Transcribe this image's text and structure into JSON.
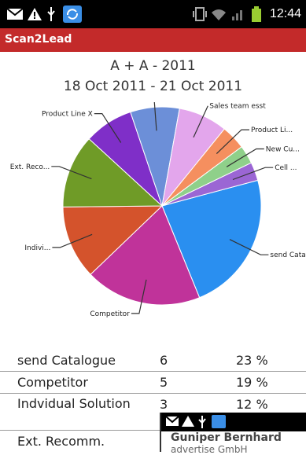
{
  "status_bar": {
    "time": "12:44",
    "icons": [
      "mail-icon",
      "warning-icon",
      "usb-icon",
      "sync-icon",
      "vibrate-icon",
      "wifi-icon",
      "signal-icon",
      "battery-icon"
    ]
  },
  "app": {
    "title": "Scan2Lead"
  },
  "chart": {
    "title": "A + A - 2011",
    "subtitle": "18 Oct 2011 - 21 Oct 2011"
  },
  "chart_data": {
    "type": "pie",
    "title": "A + A - 2011",
    "subtitle": "18 Oct 2011 - 21 Oct 2011",
    "slices": [
      {
        "label": "send Catalo...",
        "value": 23,
        "color": "#2a8ff0"
      },
      {
        "label": "Competitor",
        "value": 19,
        "color": "#c0339a"
      },
      {
        "label": "Indivi...",
        "value": 12,
        "color": "#d4532c"
      },
      {
        "label": "Ext. Reco...",
        "value": 12,
        "color": "#6f9b27"
      },
      {
        "label": "Product Line X",
        "value": 8,
        "color": "#7f2fc8"
      },
      {
        "label": "",
        "value": 8,
        "color": "#6c8fd8"
      },
      {
        "label": "Sales team esst",
        "value": 8,
        "color": "#e3a6ec"
      },
      {
        "label": "Product Li...",
        "value": 4,
        "color": "#f58f5f"
      },
      {
        "label": "New Cu...",
        "value": 3,
        "color": "#8fd08a"
      },
      {
        "label": "Cell ...",
        "value": 3,
        "color": "#9b66d4"
      }
    ]
  },
  "table": {
    "rows": [
      {
        "name": "send Catalogue",
        "count": "6",
        "pct": "23 %"
      },
      {
        "name": "Competitor",
        "count": "5",
        "pct": "19 %"
      },
      {
        "name": "Indvidual Solution",
        "count": "3",
        "pct": "12 %"
      },
      {
        "name": "Ext. Recomm.",
        "count": "",
        "pct": ""
      }
    ]
  },
  "overlay": {
    "line1": "Guniper Bernhard",
    "line2": "advertise GmbH"
  }
}
